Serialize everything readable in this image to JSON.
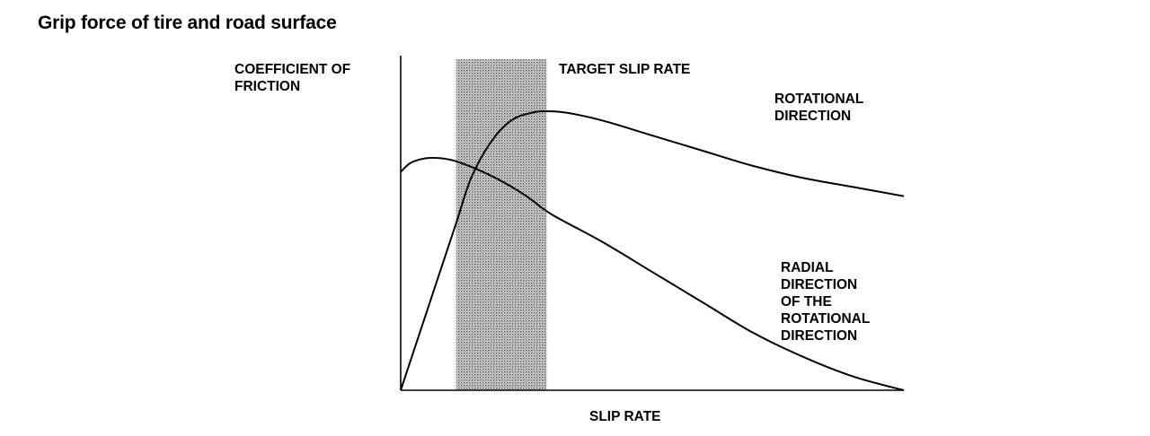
{
  "title": "Grip force of tire and road surface",
  "chart_data": {
    "type": "line",
    "title": "Grip force of tire and road surface",
    "xlabel": "SLIP RATE",
    "ylabel": [
      "COEFFICIENT OF",
      "FRICTION"
    ],
    "xlim": [
      0,
      1
    ],
    "ylim": [
      0,
      1
    ],
    "grid": false,
    "band": {
      "label": "TARGET SLIP RATE",
      "x_start": 0.11,
      "x_end": 0.29
    },
    "series": [
      {
        "name": [
          "ROTATIONAL",
          "DIRECTION"
        ],
        "x": [
          0,
          0.06,
          0.11,
          0.14,
          0.18,
          0.22,
          0.26,
          0.29,
          0.33,
          0.4,
          0.5,
          0.6,
          0.7,
          0.8,
          0.9,
          1.0
        ],
        "y": [
          0,
          0.3,
          0.55,
          0.7,
          0.82,
          0.89,
          0.915,
          0.92,
          0.915,
          0.89,
          0.84,
          0.79,
          0.74,
          0.7,
          0.67,
          0.64
        ]
      },
      {
        "name": [
          "RADIAL",
          "DIRECTION",
          "OF THE",
          "ROTATIONAL",
          "DIRECTION"
        ],
        "x": [
          0,
          0.02,
          0.05,
          0.08,
          0.11,
          0.15,
          0.2,
          0.25,
          0.3,
          0.4,
          0.5,
          0.6,
          0.7,
          0.8,
          0.9,
          1.0
        ],
        "y": [
          0.72,
          0.75,
          0.765,
          0.765,
          0.755,
          0.73,
          0.69,
          0.64,
          0.58,
          0.49,
          0.39,
          0.29,
          0.19,
          0.11,
          0.045,
          0.0
        ]
      }
    ]
  }
}
